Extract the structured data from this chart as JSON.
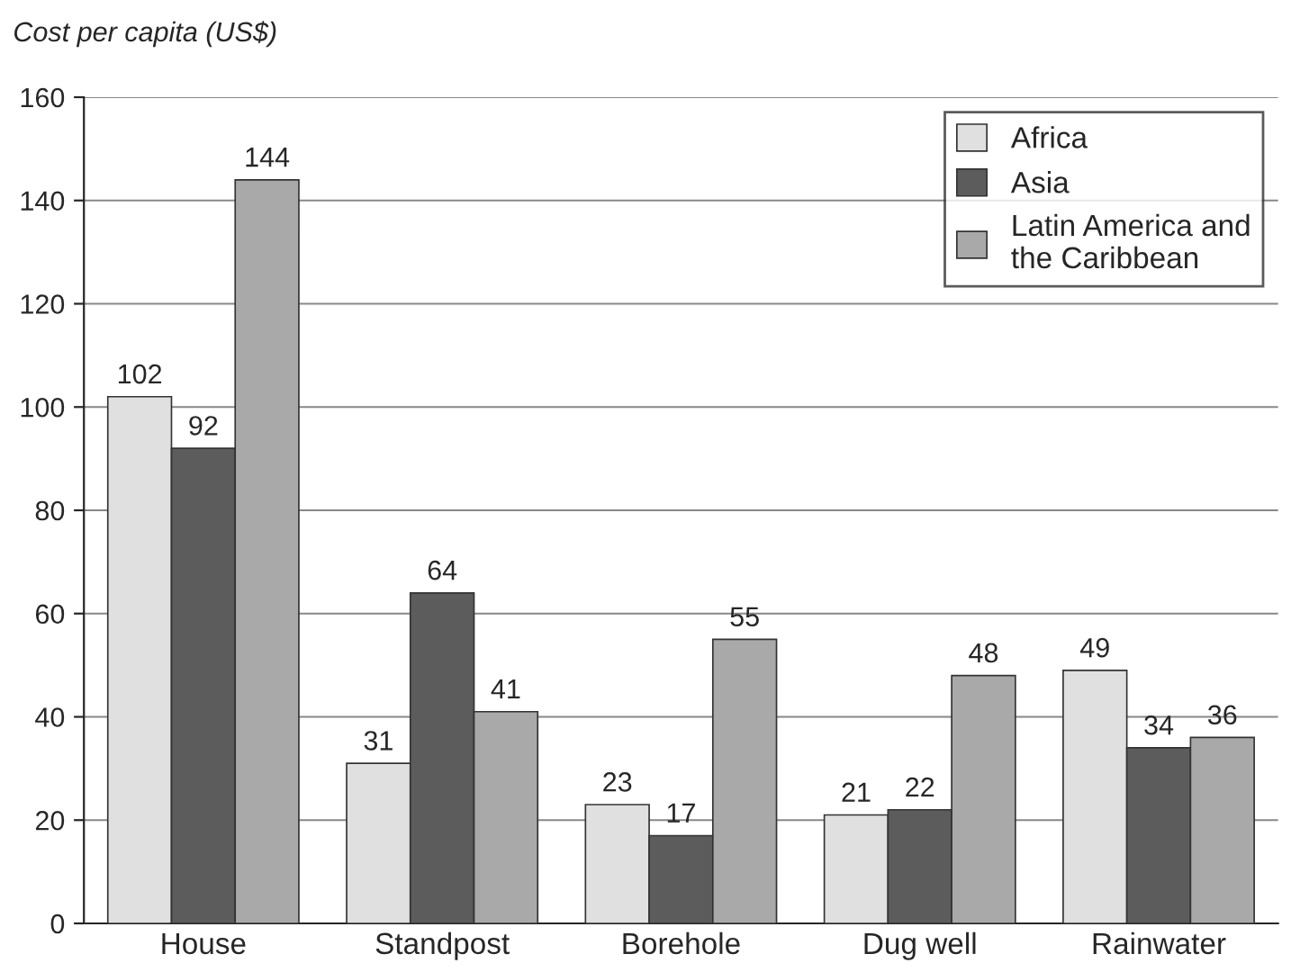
{
  "chart_data": {
    "type": "bar",
    "ylabel": "Cost per capita (US$)",
    "categories": [
      "House",
      "Standpost",
      "Borehole",
      "Dug well",
      "Rainwater"
    ],
    "series": [
      {
        "name": "Africa",
        "color": "#e0e0e0",
        "values": [
          102,
          31,
          23,
          21,
          49
        ]
      },
      {
        "name": "Asia",
        "color": "#5c5c5c",
        "values": [
          92,
          64,
          17,
          22,
          34
        ]
      },
      {
        "name": "Latin America and\nthe Caribbean",
        "color": "#a9a9a9",
        "values": [
          144,
          41,
          55,
          48,
          36
        ]
      }
    ],
    "ylim": [
      0,
      160
    ],
    "yticks": [
      0,
      20,
      40,
      60,
      80,
      100,
      120,
      140,
      160
    ],
    "grid": "y",
    "legend": "top right",
    "data_labels": true
  }
}
